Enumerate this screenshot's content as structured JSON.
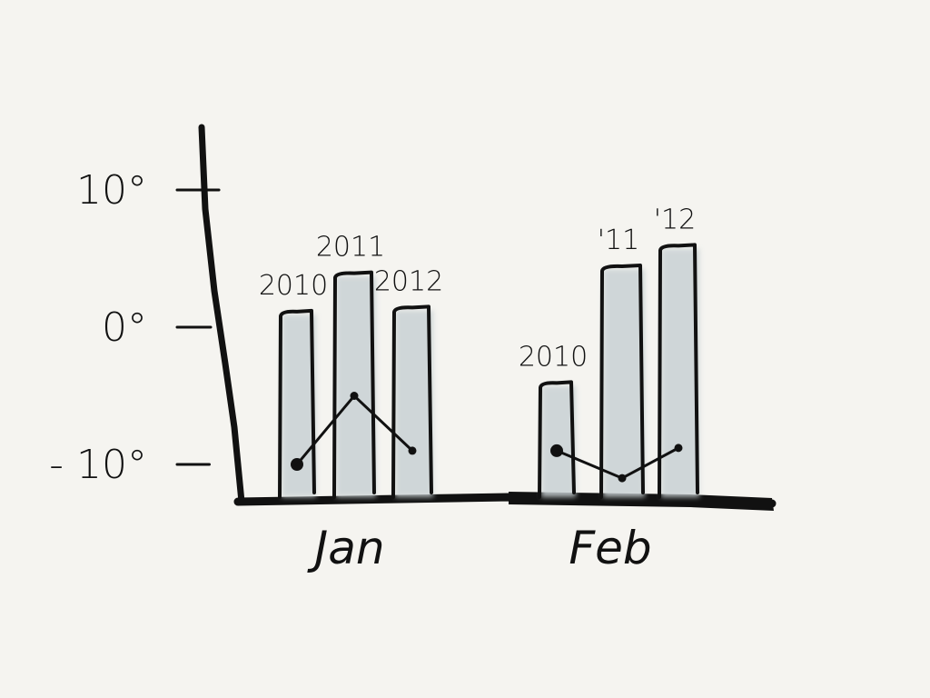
{
  "chart_data": {
    "type": "bar",
    "title": "",
    "xlabel": "",
    "ylabel": "",
    "yticks": [
      {
        "value": 10,
        "label": "10°"
      },
      {
        "value": 0,
        "label": "0°"
      },
      {
        "value": -10,
        "label": "- 10°"
      }
    ],
    "ylim": [
      -12,
      12
    ],
    "grid": false,
    "groups": [
      {
        "category": "Jan",
        "bars": [
          {
            "label": "2010",
            "value": 1.2,
            "line_value": -10
          },
          {
            "label": "2011",
            "value": 4,
            "line_value": -5
          },
          {
            "label": "2012",
            "value": 1.5,
            "line_value": -9
          }
        ]
      },
      {
        "category": "Feb",
        "bars": [
          {
            "label": "2010",
            "value": -4,
            "line_value": -9
          },
          {
            "label": "'11",
            "value": 4.5,
            "line_value": -11
          },
          {
            "label": "'12",
            "value": 6,
            "line_value": -8.8
          }
        ]
      }
    ],
    "colors": {
      "bar_fill": "#c9d1d4",
      "ink": "#111111"
    }
  }
}
